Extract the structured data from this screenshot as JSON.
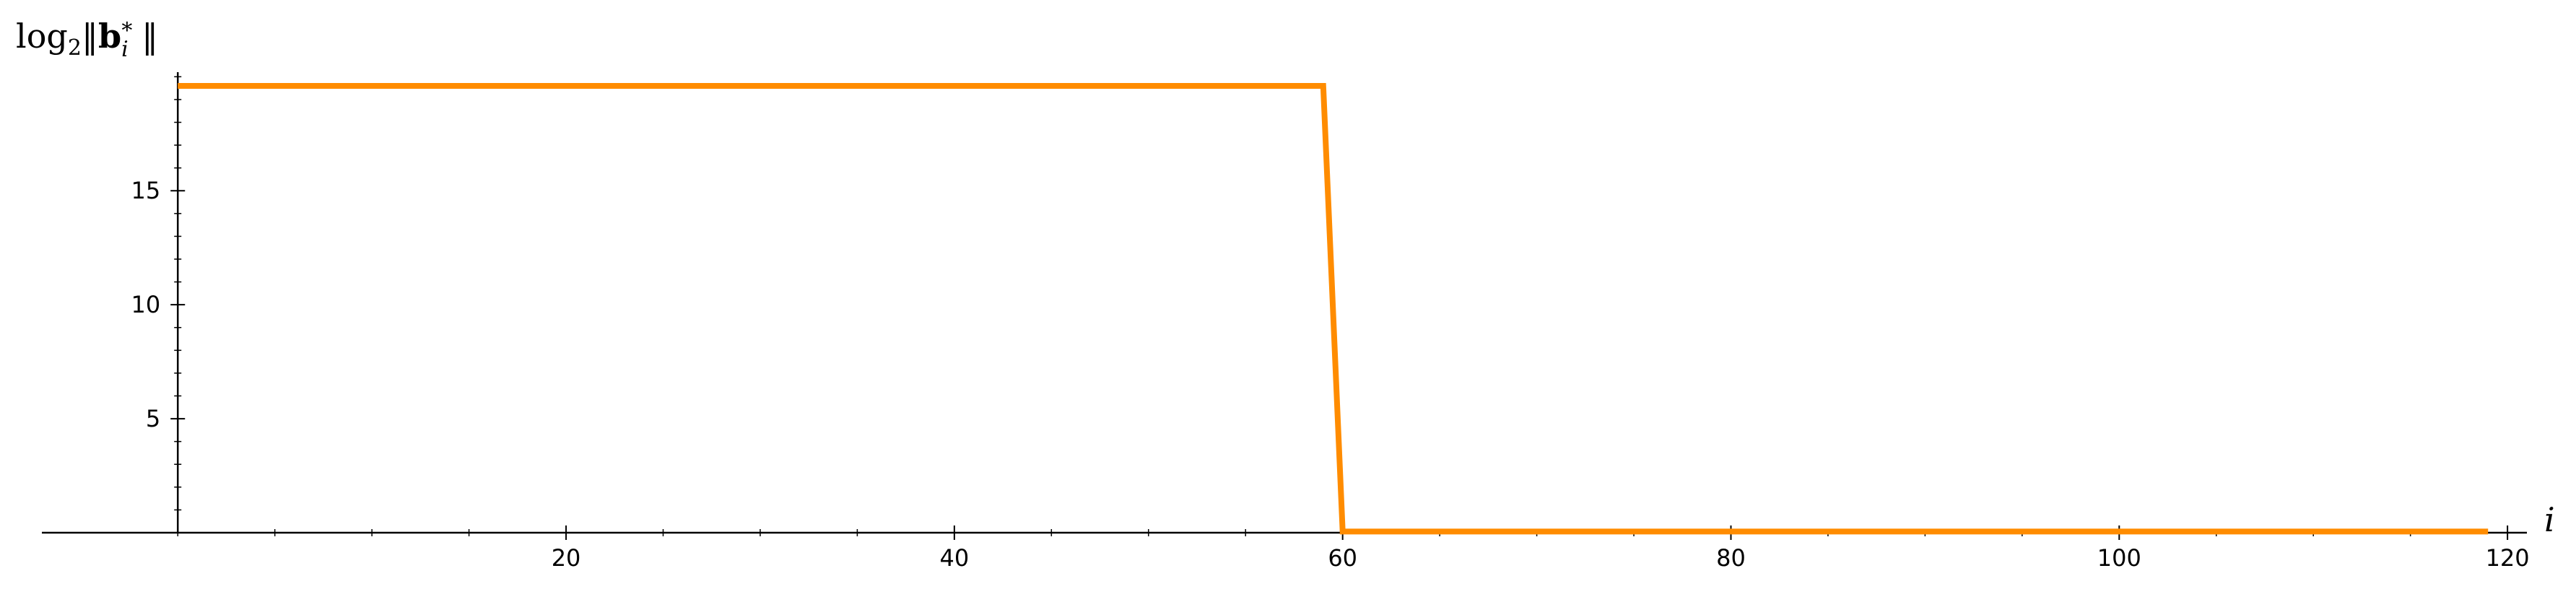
{
  "chart_data": {
    "type": "line",
    "title": "",
    "xlabel": "i",
    "ylabel": {
      "prefix": "log",
      "subscript": "2",
      "open": "‖",
      "bold": "b",
      "sub_i": "i",
      "sup_star": "∗",
      "close": "‖"
    },
    "xlim": [
      -7,
      121
    ],
    "ylim": [
      0,
      20.2
    ],
    "xticks": [
      20,
      40,
      60,
      80,
      100,
      120
    ],
    "yticks": [
      5,
      10,
      15
    ],
    "xtick_labels": [
      "20",
      "40",
      "60",
      "80",
      "100",
      "120"
    ],
    "ytick_labels": [
      "5",
      "10",
      "15"
    ],
    "grid": false,
    "series": [
      {
        "color": "#ff8c00",
        "x": [
          0,
          59,
          60,
          119
        ],
        "y": [
          19.6,
          19.6,
          0.05,
          0.05
        ]
      }
    ]
  }
}
